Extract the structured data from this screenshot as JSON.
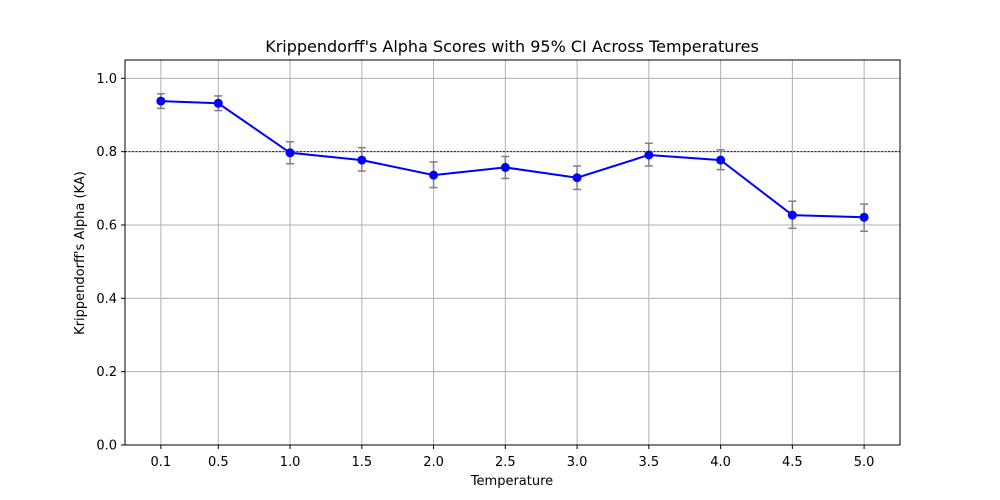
{
  "chart_data": {
    "type": "line",
    "title": "Krippendorff's Alpha Scores with 95% CI Across Temperatures",
    "xlabel": "Temperature",
    "ylabel": "Krippendorff's Alpha (KA)",
    "x": [
      0.1,
      0.5,
      1.0,
      1.5,
      2.0,
      2.5,
      3.0,
      3.5,
      4.0,
      4.5,
      5.0
    ],
    "x_tick_labels": [
      "0.1",
      "0.5",
      "1.0",
      "1.5",
      "2.0",
      "2.5",
      "3.0",
      "3.5",
      "4.0",
      "4.5",
      "5.0"
    ],
    "y_ticks": [
      0.0,
      0.2,
      0.4,
      0.6,
      0.8,
      1.0
    ],
    "y_tick_labels": [
      "0.0",
      "0.2",
      "0.4",
      "0.6",
      "0.8",
      "1.0"
    ],
    "xlim": [
      -0.15,
      5.25
    ],
    "ylim": [
      0.0,
      1.05
    ],
    "grid": true,
    "reference_line": 0.8,
    "series": [
      {
        "values": [
          0.938,
          0.932,
          0.797,
          0.777,
          0.736,
          0.757,
          0.729,
          0.791,
          0.777,
          0.627,
          0.621
        ],
        "ci_lower": [
          0.918,
          0.912,
          0.767,
          0.747,
          0.702,
          0.727,
          0.697,
          0.761,
          0.751,
          0.591,
          0.583
        ],
        "ci_upper": [
          0.958,
          0.952,
          0.827,
          0.811,
          0.772,
          0.787,
          0.761,
          0.823,
          0.805,
          0.665,
          0.657
        ],
        "color": "#0000ff",
        "errorbar_color": "#808080"
      }
    ]
  }
}
